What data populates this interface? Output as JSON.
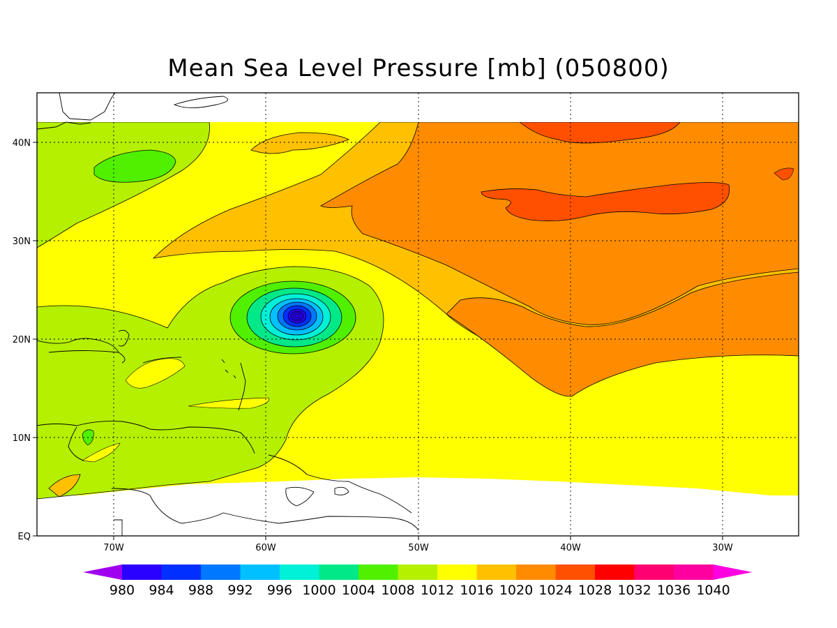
{
  "title": "Mean Sea Level Pressure [mb] (050800)",
  "map": {
    "lon_range": [
      -75,
      -25
    ],
    "lat_range": [
      0,
      45
    ],
    "lon_ticks": [
      "70W",
      "60W",
      "50W",
      "40W",
      "30W"
    ],
    "lat_ticks": [
      "EQ",
      "10N",
      "20N",
      "30N",
      "40N"
    ],
    "grid": "dotted"
  },
  "colorbar": {
    "levels": [
      "980",
      "984",
      "988",
      "992",
      "996",
      "1000",
      "1004",
      "1008",
      "1012",
      "1016",
      "1020",
      "1024",
      "1028",
      "1032",
      "1036",
      "1040"
    ],
    "colors": [
      "#a000f0",
      "#2a00ff",
      "#0030ff",
      "#0078ff",
      "#00c0ff",
      "#00f0d8",
      "#00e888",
      "#50f000",
      "#b4f000",
      "#ffff00",
      "#ffc000",
      "#ff8c00",
      "#ff5000",
      "#ff0000",
      "#ff0070",
      "#ff00a0",
      "#ff00e0"
    ]
  },
  "chart_data": {
    "type": "heatmap",
    "variable": "Mean Sea Level Pressure [mb]",
    "units": "mb",
    "features": [
      {
        "type": "low",
        "lon": -58,
        "lat": 22.5,
        "min_pressure_band": "980-984"
      },
      {
        "type": "low",
        "lon": -65,
        "lat": 37.5,
        "pressure_band": "1008-1012"
      },
      {
        "type": "high",
        "lon": -37,
        "lat": 34,
        "pressure_band": "1024-1028"
      }
    ]
  }
}
